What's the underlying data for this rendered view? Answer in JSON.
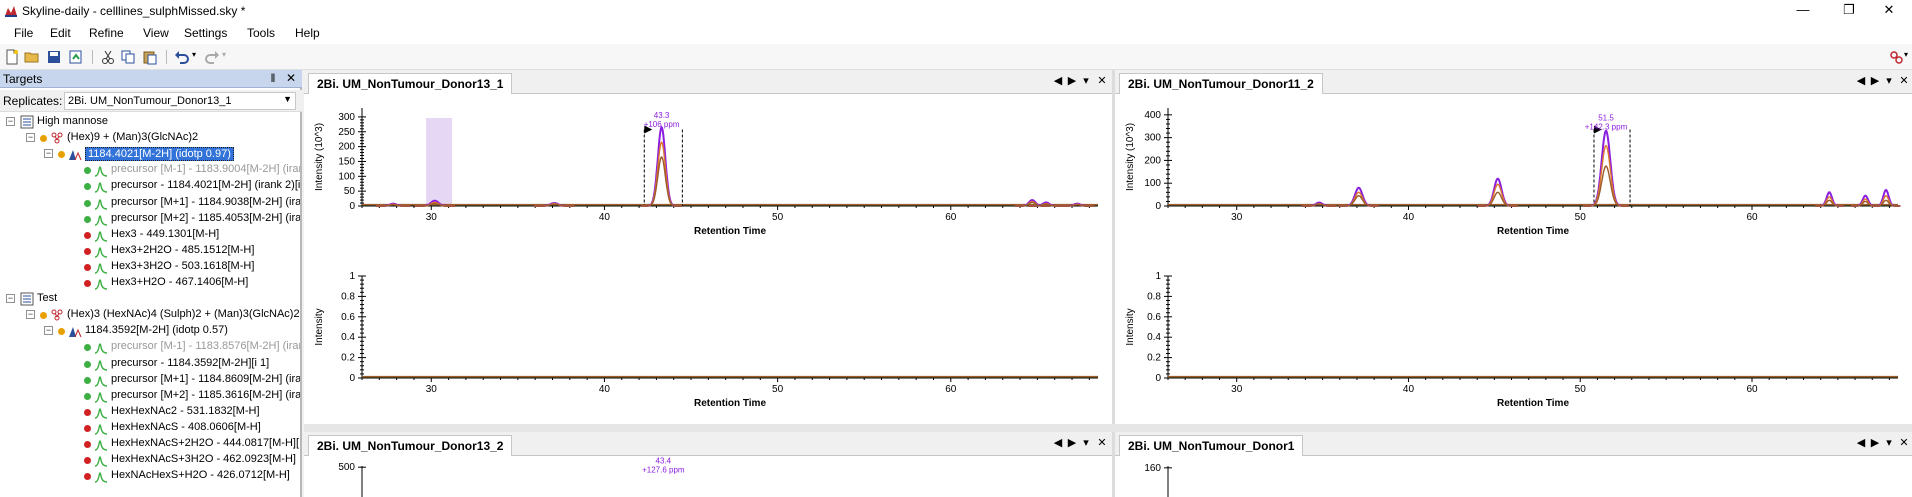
{
  "window": {
    "title": "Skyline-daily - celllines_sulphMissed.sky *",
    "minimize": "—",
    "maximize": "❐",
    "close": "✕"
  },
  "menu": [
    "File",
    "Edit",
    "Refine",
    "View",
    "Settings",
    "Tools",
    "Help"
  ],
  "toolbar": {
    "icons": [
      "new-document-icon",
      "open-folder-icon",
      "save-icon",
      "import-icon",
      "cut-icon",
      "copy-icon",
      "paste-icon",
      "undo-icon",
      "redo-icon",
      "peptide-icon"
    ]
  },
  "targets": {
    "title": "Targets",
    "pin": "‖",
    "close": "✕",
    "replicates_label": "Replicates:",
    "replicate_value": "2Bi. UM_NonTumour_Donor13_1",
    "tree": [
      {
        "level": 0,
        "text": "High mannose",
        "type": "list",
        "expander": "−"
      },
      {
        "level": 1,
        "text": "(Hex)9 + (Man)3(GlcNAc)2",
        "type": "molecule",
        "expander": "−",
        "dot": "#e8a000"
      },
      {
        "level": 2,
        "text": "1184.4021[M-2H] (idotp 0.97)",
        "type": "precursor",
        "expander": "−",
        "dot": "#e8a000",
        "selected": true
      },
      {
        "level": 3,
        "text": "precursor [M-1] - 1183.9004[M-2H] (iran",
        "type": "transition",
        "dot": "#3cb043",
        "grey": true
      },
      {
        "level": 3,
        "text": "precursor - 1184.4021[M-2H] (irank 2)[i",
        "type": "transition",
        "dot": "#3cb043"
      },
      {
        "level": 3,
        "text": "precursor [M+1] - 1184.9038[M-2H] (irar",
        "type": "transition",
        "dot": "#3cb043"
      },
      {
        "level": 3,
        "text": "precursor [M+2] - 1185.4053[M-2H] (irar",
        "type": "transition",
        "dot": "#3cb043"
      },
      {
        "level": 3,
        "text": "Hex3 - 449.1301[M-H]",
        "type": "transition",
        "dot": "#d02020"
      },
      {
        "level": 3,
        "text": "Hex3+2H2O - 485.1512[M-H]",
        "type": "transition",
        "dot": "#d02020"
      },
      {
        "level": 3,
        "text": "Hex3+3H2O - 503.1618[M-H]",
        "type": "transition",
        "dot": "#d02020"
      },
      {
        "level": 3,
        "text": "Hex3+H2O - 467.1406[M-H]",
        "type": "transition",
        "dot": "#d02020"
      },
      {
        "level": 0,
        "text": "Test",
        "type": "list",
        "expander": "−"
      },
      {
        "level": 1,
        "text": "(Hex)3 (HexNAc)4 (Sulph)2 + (Man)3(GlcNAc)2",
        "type": "molecule",
        "expander": "−",
        "dot": "#e8a000"
      },
      {
        "level": 2,
        "text": "1184.3592[M-2H] (idotp 0.57)",
        "type": "precursor",
        "expander": "−",
        "dot": "#e8a000"
      },
      {
        "level": 3,
        "text": "precursor [M-1] - 1183.8576[M-2H] (iran",
        "type": "transition",
        "dot": "#3cb043",
        "grey": true
      },
      {
        "level": 3,
        "text": "precursor - 1184.3592[M-2H][i 1]",
        "type": "transition",
        "dot": "#3cb043"
      },
      {
        "level": 3,
        "text": "precursor [M+1] - 1184.8609[M-2H] (iran",
        "type": "transition",
        "dot": "#3cb043"
      },
      {
        "level": 3,
        "text": "precursor [M+2] - 1185.3616[M-2H] (iran",
        "type": "transition",
        "dot": "#3cb043"
      },
      {
        "level": 3,
        "text": "HexHexNAc2 - 531.1832[M-H]",
        "type": "transition",
        "dot": "#d02020"
      },
      {
        "level": 3,
        "text": "HexHexNAcS - 408.0606[M-H]",
        "type": "transition",
        "dot": "#d02020"
      },
      {
        "level": 3,
        "text": "HexHexNAcS+2H2O - 444.0817[M-H][",
        "type": "transition",
        "dot": "#d02020"
      },
      {
        "level": 3,
        "text": "HexHexNAcS+3H2O - 462.0923[M-H]",
        "type": "transition",
        "dot": "#d02020"
      },
      {
        "level": 3,
        "text": "HexNAcHexS+H2O - 426.0712[M-H]",
        "type": "transition",
        "dot": "#d02020"
      }
    ]
  },
  "panes": [
    {
      "tab": "2Bi. UM_NonTumour_Donor13_1",
      "ctrl": [
        "◀",
        "▶",
        "▾",
        "✕"
      ]
    },
    {
      "tab": "2Bi. UM_NonTumour_Donor11_2",
      "ctrl": [
        "◀",
        "▶",
        "▾",
        "✕"
      ]
    },
    {
      "tab": "2Bi. UM_NonTumour_Donor13_2",
      "ctrl": [
        "◀",
        "▶",
        "▾",
        "✕"
      ]
    },
    {
      "tab": "2Bi. UM_NonTumour_Donor1",
      "ctrl": [
        "◀",
        "▶",
        "▾",
        "✕"
      ]
    }
  ],
  "chart_data": [
    {
      "type": "line",
      "pane": "2Bi. UM_NonTumour_Donor13_1",
      "xlabel": "Retention Time",
      "ylabel": "Intensity (10^3)",
      "xlim": [
        26,
        68.5
      ],
      "ylim": [
        0,
        330
      ],
      "xticks": [
        30,
        40,
        50,
        60
      ],
      "yticks": [
        0,
        50,
        100,
        150,
        200,
        250,
        300
      ],
      "annotations": [
        {
          "x": 43.3,
          "y": 270,
          "label": "43.3",
          "sublabel": "+106 ppm"
        }
      ],
      "boundaries": [
        42.3,
        44.5
      ],
      "highlight": [
        29.7,
        31.2
      ],
      "peaks": [
        {
          "x": 43.3,
          "heights": [
            265,
            215,
            165
          ],
          "width": 0.35
        },
        {
          "x": 30.2,
          "heights": [
            18,
            12,
            8
          ],
          "width": 0.35
        },
        {
          "x": 27.8,
          "heights": [
            8,
            6,
            4
          ],
          "width": 0.3
        },
        {
          "x": 37.1,
          "heights": [
            10,
            8,
            6
          ],
          "width": 0.35
        },
        {
          "x": 64.7,
          "heights": [
            20,
            15,
            12
          ],
          "width": 0.3
        },
        {
          "x": 65.5,
          "heights": [
            12,
            8,
            6
          ],
          "width": 0.3
        },
        {
          "x": 67.3,
          "heights": [
            8,
            6,
            4
          ],
          "width": 0.3
        }
      ]
    },
    {
      "type": "line",
      "pane": "2Bi. UM_NonTumour_Donor11_2",
      "xlabel": "Retention Time",
      "ylabel": "Intensity (10^3)",
      "xlim": [
        26,
        68.5
      ],
      "ylim": [
        0,
        430
      ],
      "xticks": [
        30,
        40,
        50,
        60
      ],
      "yticks": [
        0,
        100,
        200,
        300,
        400
      ],
      "annotations": [
        {
          "x": 51.5,
          "y": 340,
          "label": "51.5",
          "sublabel": "+142.3 ppm"
        }
      ],
      "boundaries": [
        50.8,
        52.9
      ],
      "peaks": [
        {
          "x": 51.5,
          "heights": [
            330,
            265,
            175
          ],
          "width": 0.4
        },
        {
          "x": 45.2,
          "heights": [
            120,
            95,
            60
          ],
          "width": 0.35
        },
        {
          "x": 37.1,
          "heights": [
            80,
            60,
            45
          ],
          "width": 0.35
        },
        {
          "x": 34.8,
          "heights": [
            15,
            10,
            8
          ],
          "width": 0.3
        },
        {
          "x": 64.5,
          "heights": [
            60,
            40,
            25
          ],
          "width": 0.25
        },
        {
          "x": 66.6,
          "heights": [
            45,
            30,
            20
          ],
          "width": 0.25
        },
        {
          "x": 67.8,
          "heights": [
            70,
            45,
            25
          ],
          "width": 0.25
        }
      ]
    },
    {
      "type": "line",
      "pane": "2Bi. UM_NonTumour_Donor13_1",
      "xlabel": "Retention Time",
      "ylabel": "Intensity",
      "xlim": [
        26,
        68.5
      ],
      "ylim": [
        0,
        1
      ],
      "xticks": [
        30,
        40,
        50,
        60
      ],
      "yticks": [
        0,
        0.2,
        0.4,
        0.6,
        0.8,
        1
      ],
      "peaks": []
    },
    {
      "type": "line",
      "pane": "2Bi. UM_NonTumour_Donor11_2",
      "xlabel": "Retention Time",
      "ylabel": "Intensity",
      "xlim": [
        26,
        68.5
      ],
      "ylim": [
        0,
        1
      ],
      "xticks": [
        30,
        40,
        50,
        60
      ],
      "yticks": [
        0,
        0.2,
        0.4,
        0.6,
        0.8,
        1
      ],
      "peaks": []
    },
    {
      "type": "line",
      "pane": "2Bi. UM_NonTumour_Donor13_2",
      "ylabel": "",
      "ylim": [
        0,
        520
      ],
      "yticks": [
        500
      ],
      "annotations": [
        {
          "x": 43.4,
          "y": 430,
          "label": "43.4",
          "sublabel": "+127.6 ppm"
        }
      ],
      "xlim": [
        26,
        68.5
      ],
      "peaks": []
    },
    {
      "type": "line",
      "pane": "2Bi. UM_NonTumour_Donor1",
      "ylabel": "",
      "ylim": [
        0,
        170
      ],
      "yticks": [
        160
      ],
      "xlim": [
        26,
        68.5
      ],
      "peaks": []
    }
  ],
  "series_colors": [
    "#8c1ee0",
    "#e0782a",
    "#9a5a2a"
  ]
}
